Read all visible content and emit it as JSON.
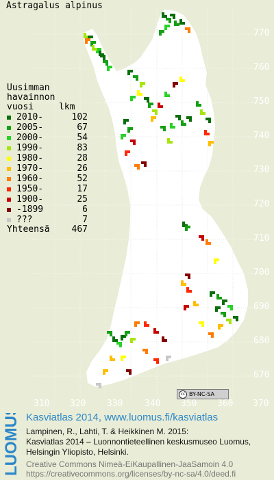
{
  "title": "Astragalus alpinus",
  "legend": {
    "heading_lines": [
      "Uusimman",
      "havainnon"
    ],
    "heading_last": "vuosi",
    "heading_count": "lkm",
    "rows": [
      {
        "label": "2010-",
        "count": "102",
        "color": "#0a6e0a"
      },
      {
        "label": "2005-",
        "count": "67",
        "color": "#14a014"
      },
      {
        "label": "2000-",
        "count": "54",
        "color": "#28d228"
      },
      {
        "label": "1990-",
        "count": "83",
        "color": "#a6e60e"
      },
      {
        "label": "1980-",
        "count": "28",
        "color": "#ffff00"
      },
      {
        "label": "1970-",
        "count": "26",
        "color": "#ffbe00"
      },
      {
        "label": "1960-",
        "count": "52",
        "color": "#ff7d00"
      },
      {
        "label": "1950-",
        "count": "17",
        "color": "#ff2800"
      },
      {
        "label": "1900-",
        "count": "25",
        "color": "#c80000"
      },
      {
        "label": "-1899",
        "count": "6",
        "color": "#820000"
      },
      {
        "label": "???",
        "count": "7",
        "color": "#c8c8c8"
      }
    ],
    "total_label": "Yhteensä",
    "total_count": "467"
  },
  "grid": {
    "northing_labels": [
      "770",
      "760",
      "750",
      "740",
      "730",
      "720",
      "710",
      "700",
      "690",
      "680",
      "670"
    ],
    "easting_labels": [
      "310",
      "320",
      "330",
      "340",
      "350",
      "360",
      "370"
    ]
  },
  "license_badge": "BY-NC-SA",
  "logo_text": "LUOMUS",
  "footer": {
    "heading": "Kasviatlas 2014, www.luomus.fi/kasviatlas",
    "line1": "Lampinen, R., Lahti, T. & Heikkinen M. 2015:",
    "line2": "Kasviatlas 2014 – Luonnontieteellinen keskusmuseo Luomus,",
    "line3": "Helsingin Yliopisto, Helsinki.",
    "line4": "Creative Commons Nimeä-EiKaupallinen-JaaSamoin 4.0",
    "line5": "https://creativecommons.org/licenses/by-nc-sa/4.0/deed.fi"
  }
}
